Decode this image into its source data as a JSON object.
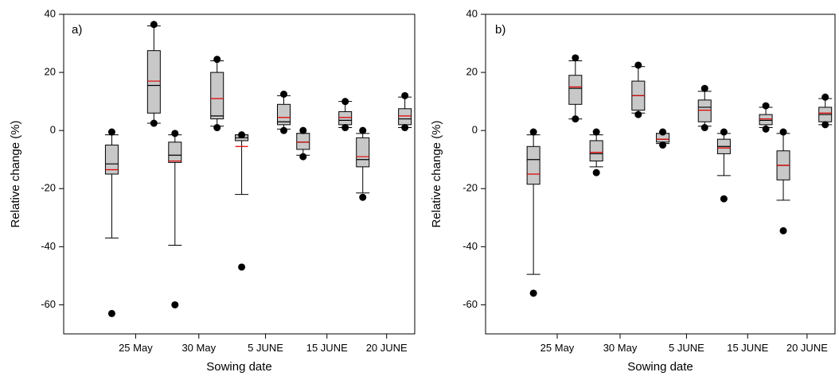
{
  "chart_data": [
    {
      "type": "box",
      "panel_label": "a)",
      "xlabel": "Sowing date",
      "ylabel": "Relative change (%)",
      "ylim": [
        -70,
        40
      ],
      "yticks": [
        -60,
        -40,
        -20,
        0,
        20,
        40
      ],
      "grid": false,
      "categories": [
        "25 May",
        "30 May",
        "5 JUNE",
        "15 JUNE",
        "20 JUNE"
      ],
      "colors": {
        "box_fill": "#c8c8c8",
        "median": "#000000",
        "mean": "#e00000",
        "outlier": "#000000"
      },
      "series": [
        {
          "boxes": [
            {
              "whisker_low": -37,
              "q1": -15,
              "median": -11.5,
              "mean": -13.5,
              "q3": -5,
              "whisker_high": -1.5,
              "outliers": [
                -63,
                -0.5
              ]
            },
            {
              "whisker_low": -39.5,
              "q1": -11,
              "median": -8.5,
              "mean": -10.5,
              "q3": -4,
              "whisker_high": -1.5,
              "outliers": [
                -60,
                -1
              ]
            },
            {
              "whisker_low": -22,
              "q1": -3.5,
              "median": -2.5,
              "mean": -5.5,
              "q3": -1.5,
              "whisker_high": -1.5,
              "outliers": [
                -47,
                -1.5
              ]
            },
            {
              "whisker_low": -8.5,
              "q1": -6.5,
              "median": -4,
              "mean": -4,
              "q3": -1,
              "whisker_high": -1,
              "outliers": [
                -9,
                0
              ]
            },
            {
              "whisker_low": -21.5,
              "q1": -12.5,
              "median": -10,
              "mean": -9,
              "q3": -2.5,
              "whisker_high": -1,
              "outliers": [
                -23,
                0
              ]
            }
          ]
        },
        {
          "boxes": [
            {
              "whisker_low": 2.5,
              "q1": 6,
              "median": 15.5,
              "mean": 17,
              "q3": 27.5,
              "whisker_high": 36,
              "outliers": [
                36.5,
                2.5
              ]
            },
            {
              "whisker_low": 1.5,
              "q1": 4,
              "median": 5,
              "mean": 11,
              "q3": 20,
              "whisker_high": 24,
              "outliers": [
                24.5,
                1
              ]
            },
            {
              "whisker_low": 0.5,
              "q1": 2,
              "median": 3,
              "mean": 4.5,
              "q3": 9,
              "whisker_high": 12,
              "outliers": [
                12.5,
                0
              ]
            },
            {
              "whisker_low": 1,
              "q1": 2,
              "median": 3.5,
              "mean": 4.5,
              "q3": 6.5,
              "whisker_high": 10,
              "outliers": [
                10,
                1
              ]
            },
            {
              "whisker_low": 1,
              "q1": 2,
              "median": 4,
              "mean": 5,
              "q3": 7.5,
              "whisker_high": 11.5,
              "outliers": [
                12,
                1
              ]
            }
          ]
        }
      ]
    },
    {
      "type": "box",
      "panel_label": "b)",
      "xlabel": "Sowing date",
      "ylabel": "Relative change (%)",
      "ylim": [
        -70,
        40
      ],
      "yticks": [
        -60,
        -40,
        -20,
        0,
        20,
        40
      ],
      "grid": false,
      "categories": [
        "25 May",
        "30 May",
        "5 JUNE",
        "15 JUNE",
        "20 JUNE"
      ],
      "colors": {
        "box_fill": "#c8c8c8",
        "median": "#000000",
        "mean": "#e00000",
        "outlier": "#000000"
      },
      "series": [
        {
          "boxes": [
            {
              "whisker_low": -49.5,
              "q1": -18.5,
              "median": -10,
              "mean": -15,
              "q3": -5.5,
              "whisker_high": -1.5,
              "outliers": [
                -56,
                -0.5
              ]
            },
            {
              "whisker_low": -12.5,
              "q1": -10.5,
              "median": -8,
              "mean": -7.5,
              "q3": -3.5,
              "whisker_high": -1.5,
              "outliers": [
                -14.5,
                -0.5
              ]
            },
            {
              "whisker_low": -4.5,
              "q1": -4,
              "median": -3,
              "mean": -3,
              "q3": -1,
              "whisker_high": -1,
              "outliers": [
                -5,
                -0.5
              ]
            },
            {
              "whisker_low": -15.5,
              "q1": -8,
              "median": -5.5,
              "mean": -6,
              "q3": -3,
              "whisker_high": -1,
              "outliers": [
                -23.5,
                -0.5
              ]
            },
            {
              "whisker_low": -24,
              "q1": -17,
              "median": -12,
              "mean": -12,
              "q3": -7,
              "whisker_high": -1,
              "outliers": [
                -34.5,
                -0.5
              ]
            }
          ]
        },
        {
          "boxes": [
            {
              "whisker_low": 4,
              "q1": 9,
              "median": 14.5,
              "mean": 15,
              "q3": 19,
              "whisker_high": 24,
              "outliers": [
                25,
                4
              ]
            },
            {
              "whisker_low": 6,
              "q1": 7,
              "median": 12,
              "mean": 12,
              "q3": 17,
              "whisker_high": 22,
              "outliers": [
                22.5,
                5.5
              ]
            },
            {
              "whisker_low": 1.5,
              "q1": 3,
              "median": 8,
              "mean": 7,
              "q3": 10.5,
              "whisker_high": 13.5,
              "outliers": [
                14.5,
                1
              ]
            },
            {
              "whisker_low": 1,
              "q1": 2,
              "median": 3.5,
              "mean": 4,
              "q3": 5.5,
              "whisker_high": 8,
              "outliers": [
                8.5,
                0.5
              ]
            },
            {
              "whisker_low": 2,
              "q1": 3,
              "median": 5.5,
              "mean": 6,
              "q3": 8,
              "whisker_high": 11,
              "outliers": [
                11.5,
                2
              ]
            }
          ]
        }
      ]
    }
  ]
}
